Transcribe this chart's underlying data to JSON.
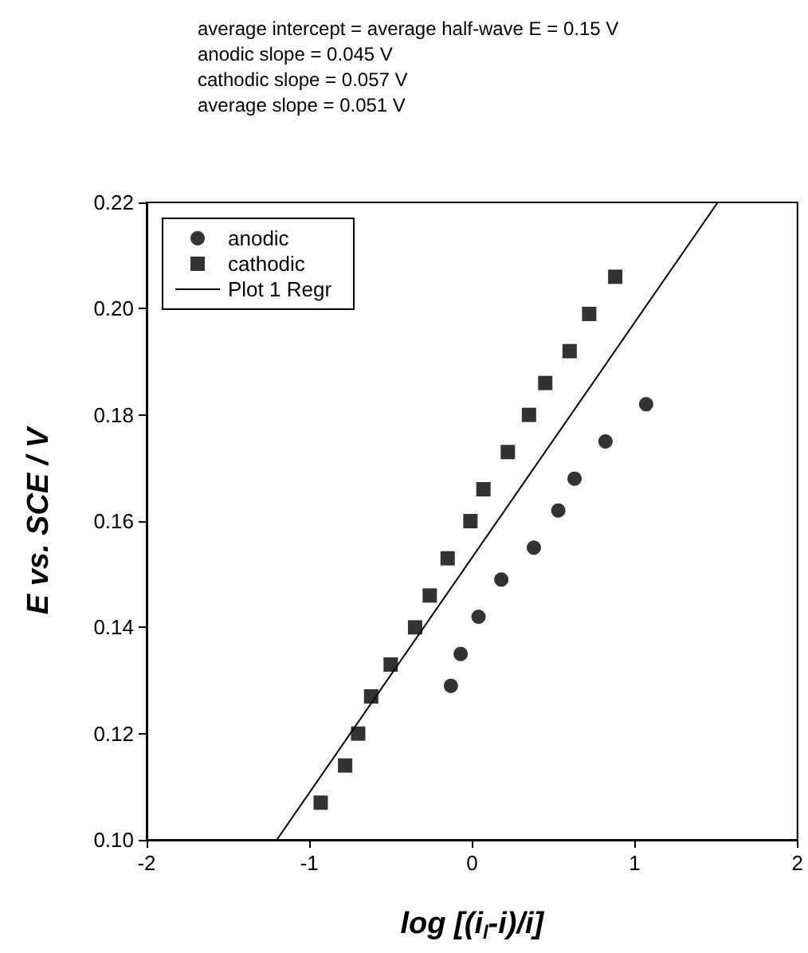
{
  "chart_data": {
    "type": "scatter",
    "annotations": [
      "average intercept = average half-wave E = 0.15 V",
      "anodic slope = 0.045 V",
      "cathodic slope = 0.057 V",
      "average slope = 0.051 V"
    ],
    "xlabel": "log [(i$_{l}$-i)/i]",
    "ylabel": "E vs. SCE / V",
    "series": [
      {
        "name": "anodic",
        "color": "#000000",
        "marker": "circle",
        "x": [
          -0.13,
          -0.07,
          0.04,
          0.18,
          0.38,
          0.53,
          0.63,
          0.82,
          1.07
        ],
        "values": [
          0.129,
          0.135,
          0.142,
          0.149,
          0.155,
          0.162,
          0.168,
          0.175,
          0.182
        ]
      },
      {
        "name": "cathodic",
        "color": "#000000",
        "marker": "square",
        "x": [
          -0.93,
          -0.78,
          -0.7,
          -0.62,
          -0.5,
          -0.35,
          -0.26,
          -0.15,
          -0.01,
          0.07,
          0.22,
          0.35,
          0.45,
          0.6,
          0.72,
          0.88
        ],
        "values": [
          0.107,
          0.114,
          0.12,
          0.127,
          0.133,
          0.14,
          0.146,
          0.153,
          0.16,
          0.166,
          0.173,
          0.18,
          0.186,
          0.192,
          0.199,
          0.206
        ]
      },
      {
        "name": "Plot 1 Regr",
        "type": "line",
        "color": "#000000",
        "marker": "none",
        "line_style": "solid",
        "x": [
          -1.2,
          1.51
        ],
        "values": [
          0.1,
          0.22
        ]
      }
    ],
    "xlim": [
      -2,
      2
    ],
    "xticks": [
      -2,
      -1,
      0,
      1,
      2
    ],
    "ylim": [
      0.1,
      0.22
    ],
    "yticks": [
      {
        "value": 0.1,
        "label": "0.10"
      },
      {
        "value": 0.12,
        "label": "0.12"
      },
      {
        "value": 0.14,
        "label": "0.14"
      },
      {
        "value": 0.16,
        "label": "0.16"
      },
      {
        "value": 0.18,
        "label": "0.18"
      },
      {
        "value": 0.2,
        "label": "0.20"
      },
      {
        "value": 0.22,
        "label": "0.22"
      }
    ],
    "grid": false,
    "legend": "top left"
  }
}
